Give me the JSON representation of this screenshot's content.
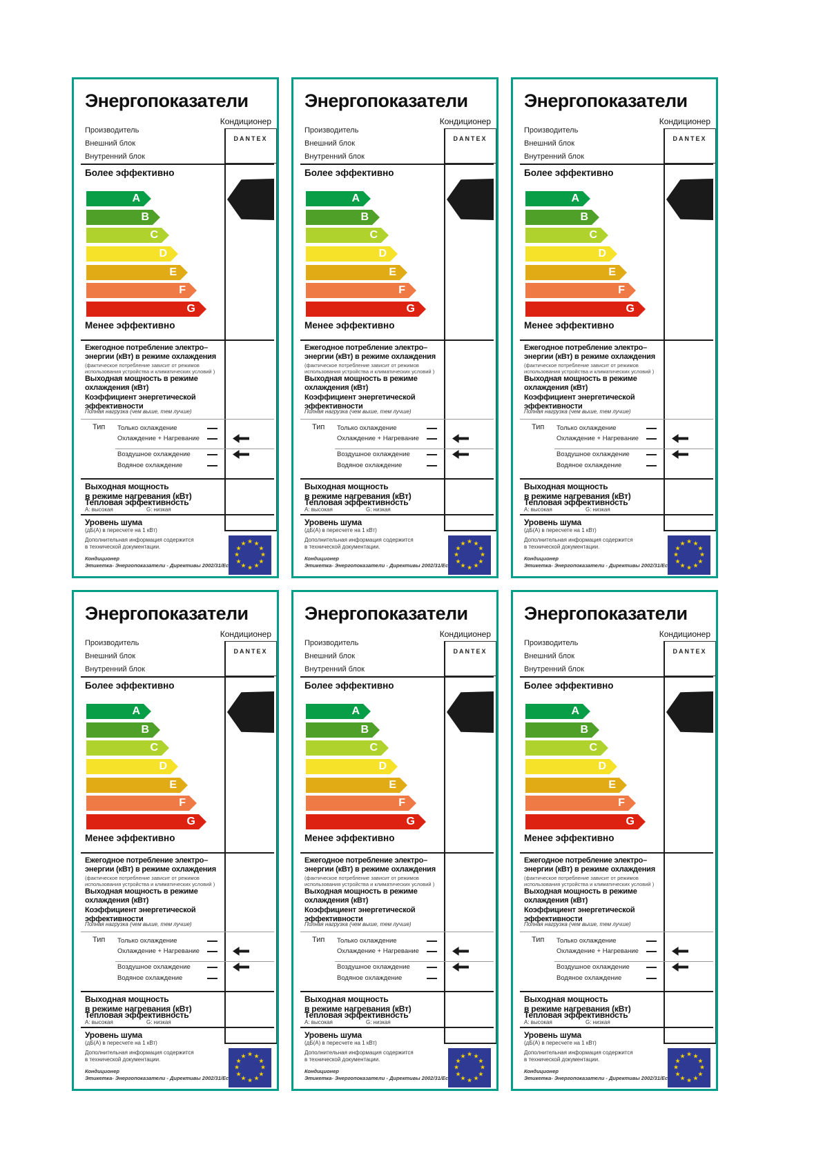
{
  "theme": {
    "border_teal": "#009e8a",
    "flag_blue": "#2e3a94",
    "star_yellow": "#f2cf00",
    "black": "#1a1a1a"
  },
  "label": {
    "title": "Энергопоказатели",
    "subtitle": "Кондиционер",
    "brand": "DANTEX",
    "manufacturer": "Производитель",
    "outdoor_unit": "Внешний блок",
    "indoor_unit": "Внутренний блок",
    "more_efficient": "Более эффективно",
    "less_efficient": "Менее эффективно",
    "grades": [
      {
        "letter": "A",
        "color": "#089e48"
      },
      {
        "letter": "B",
        "color": "#4fa028"
      },
      {
        "letter": "C",
        "color": "#b0d22c"
      },
      {
        "letter": "D",
        "color": "#f6e229"
      },
      {
        "letter": "E",
        "color": "#e1ab15"
      },
      {
        "letter": "F",
        "color": "#f07a45"
      },
      {
        "letter": "G",
        "color": "#dd2211"
      }
    ],
    "selected_grade": "A",
    "annual_consumption_title": "Ежегодное потребление электро–\nэнергии  (кВт) в режиме охлаждения",
    "annual_consumption_note": "(фактическое потребление зависит от режимов\nиспользования устройства и климатических условий )",
    "cooling_output_title": "Выходная мощность в режиме\nохлаждения  (кВт)",
    "eer_title": "Коэффициент энергетической\nэффективности",
    "eer_note": "Полная нагрузка (чем выше, тем лучше)",
    "type_label": "Тип",
    "type_options": [
      "Только охлаждение",
      "Охлаждение + Нагревание",
      "Воздушное охлаждение",
      "Водяное охлаждение"
    ],
    "type_selected": [
      "Охлаждение + Нагревание",
      "Воздушное охлаждение"
    ],
    "heating_output_title": "Выходная мощность\nв режиме нагревания (кВт)",
    "thermal_eff_title": "Тепловая эффективность",
    "thermal_eff_high": "A: высокая",
    "thermal_eff_low": "G: низкая",
    "noise_title": "Уровень шума",
    "noise_note": "(дБ(А) в пересчете на 1 кВт)",
    "footer_info": "Дополнительная информация содержится\nв технической документации.",
    "footer_product": "Кондиционер",
    "footer_directive": "Этикетка- Энергопоказатели - Директивы 2002/31/Ec"
  }
}
